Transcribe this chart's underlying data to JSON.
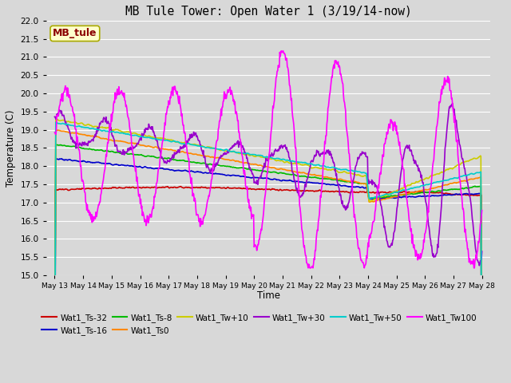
{
  "title": "MB Tule Tower: Open Water 1 (3/19/14-now)",
  "xlabel": "Time",
  "ylabel": "Temperature (C)",
  "ylim": [
    15.0,
    22.0
  ],
  "background_color": "#d8d8d8",
  "grid_color": "#ffffff",
  "series": [
    {
      "label": "Wat1_Ts-32",
      "color": "#cc0000"
    },
    {
      "label": "Wat1_Ts-16",
      "color": "#0000cc"
    },
    {
      "label": "Wat1_Ts-8",
      "color": "#00bb00"
    },
    {
      "label": "Wat1_Ts0",
      "color": "#ff8800"
    },
    {
      "label": "Wat1_Tw+10",
      "color": "#cccc00"
    },
    {
      "label": "Wat1_Tw+30",
      "color": "#9900cc"
    },
    {
      "label": "Wat1_Tw+50",
      "color": "#00cccc"
    },
    {
      "label": "Wat1_Tw100",
      "color": "#ff00ff"
    }
  ],
  "legend_label": "MB_tule",
  "legend_label_color": "#8b0000",
  "legend_box_facecolor": "#ffffcc",
  "legend_box_edgecolor": "#aaaa00",
  "x_tick_labels": [
    "May 13",
    "May 14",
    "May 15",
    "May 16",
    "May 17",
    "May 18",
    "May 19",
    "May 20",
    "May 21",
    "May 22",
    "May 23",
    "May 24",
    "May 25",
    "May 26",
    "May 27",
    "May 28"
  ]
}
